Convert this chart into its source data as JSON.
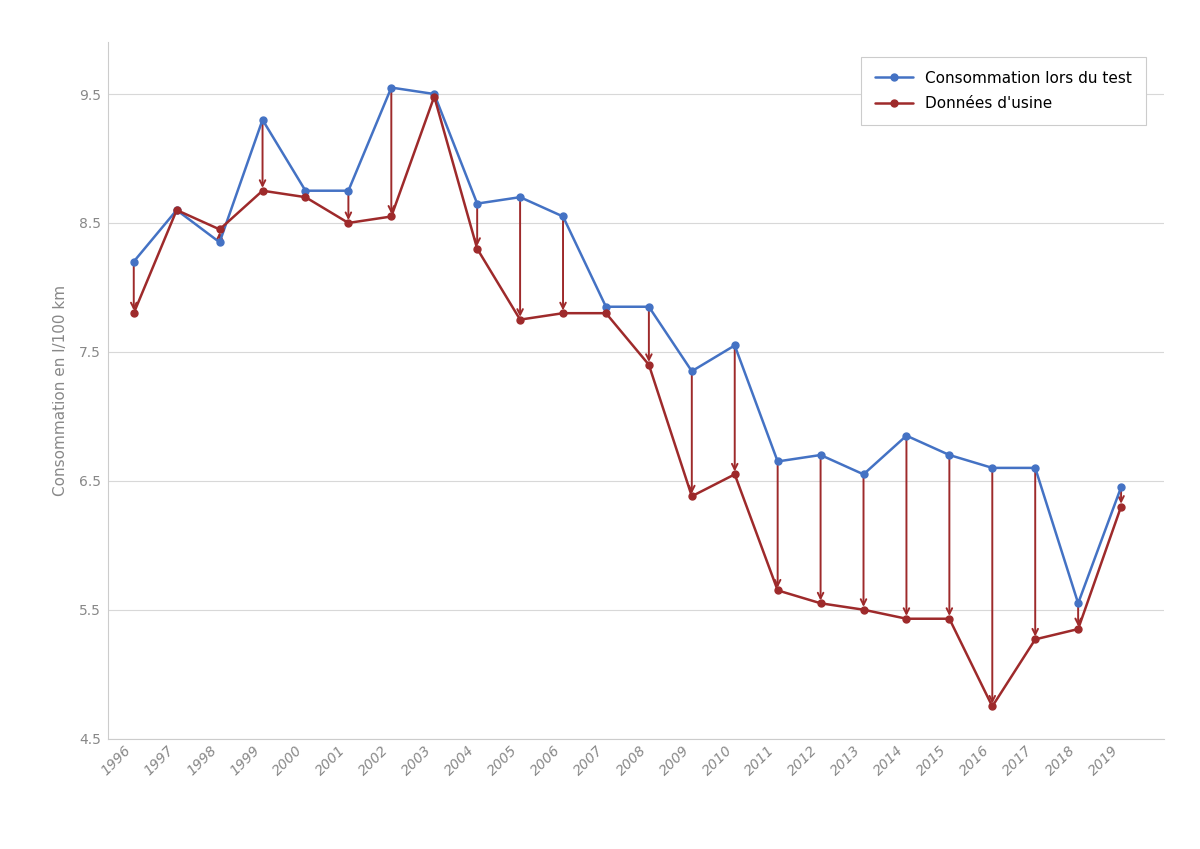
{
  "years": [
    1996,
    1997,
    1998,
    1999,
    2000,
    2001,
    2002,
    2003,
    2004,
    2005,
    2006,
    2007,
    2008,
    2009,
    2010,
    2011,
    2012,
    2013,
    2014,
    2015,
    2016,
    2017,
    2018,
    2019
  ],
  "test_values": [
    8.2,
    8.6,
    8.35,
    9.3,
    8.75,
    8.75,
    9.55,
    9.5,
    8.65,
    8.7,
    8.55,
    7.85,
    7.85,
    7.35,
    7.55,
    6.65,
    6.7,
    6.55,
    6.85,
    6.7,
    6.6,
    6.6,
    5.55,
    6.45
  ],
  "factory_values": [
    7.8,
    8.6,
    8.45,
    8.75,
    8.7,
    8.5,
    8.55,
    9.48,
    8.3,
    7.75,
    7.8,
    7.8,
    7.4,
    6.38,
    6.55,
    5.65,
    5.55,
    5.5,
    5.43,
    5.43,
    4.75,
    5.27,
    5.35,
    6.3
  ],
  "blue_color": "#4472C4",
  "red_color": "#9E2A2B",
  "line_width": 1.8,
  "marker_size": 5,
  "ylabel": "Consommation en l/100 km",
  "ylim": [
    4.5,
    9.9
  ],
  "yticks": [
    4.5,
    5.5,
    6.5,
    7.5,
    8.5,
    9.5
  ],
  "legend_test": "Consommation lors du test",
  "legend_factory": "Données d'usine",
  "background_color": "#FFFFFF",
  "grid_color": "#D8D8D8"
}
